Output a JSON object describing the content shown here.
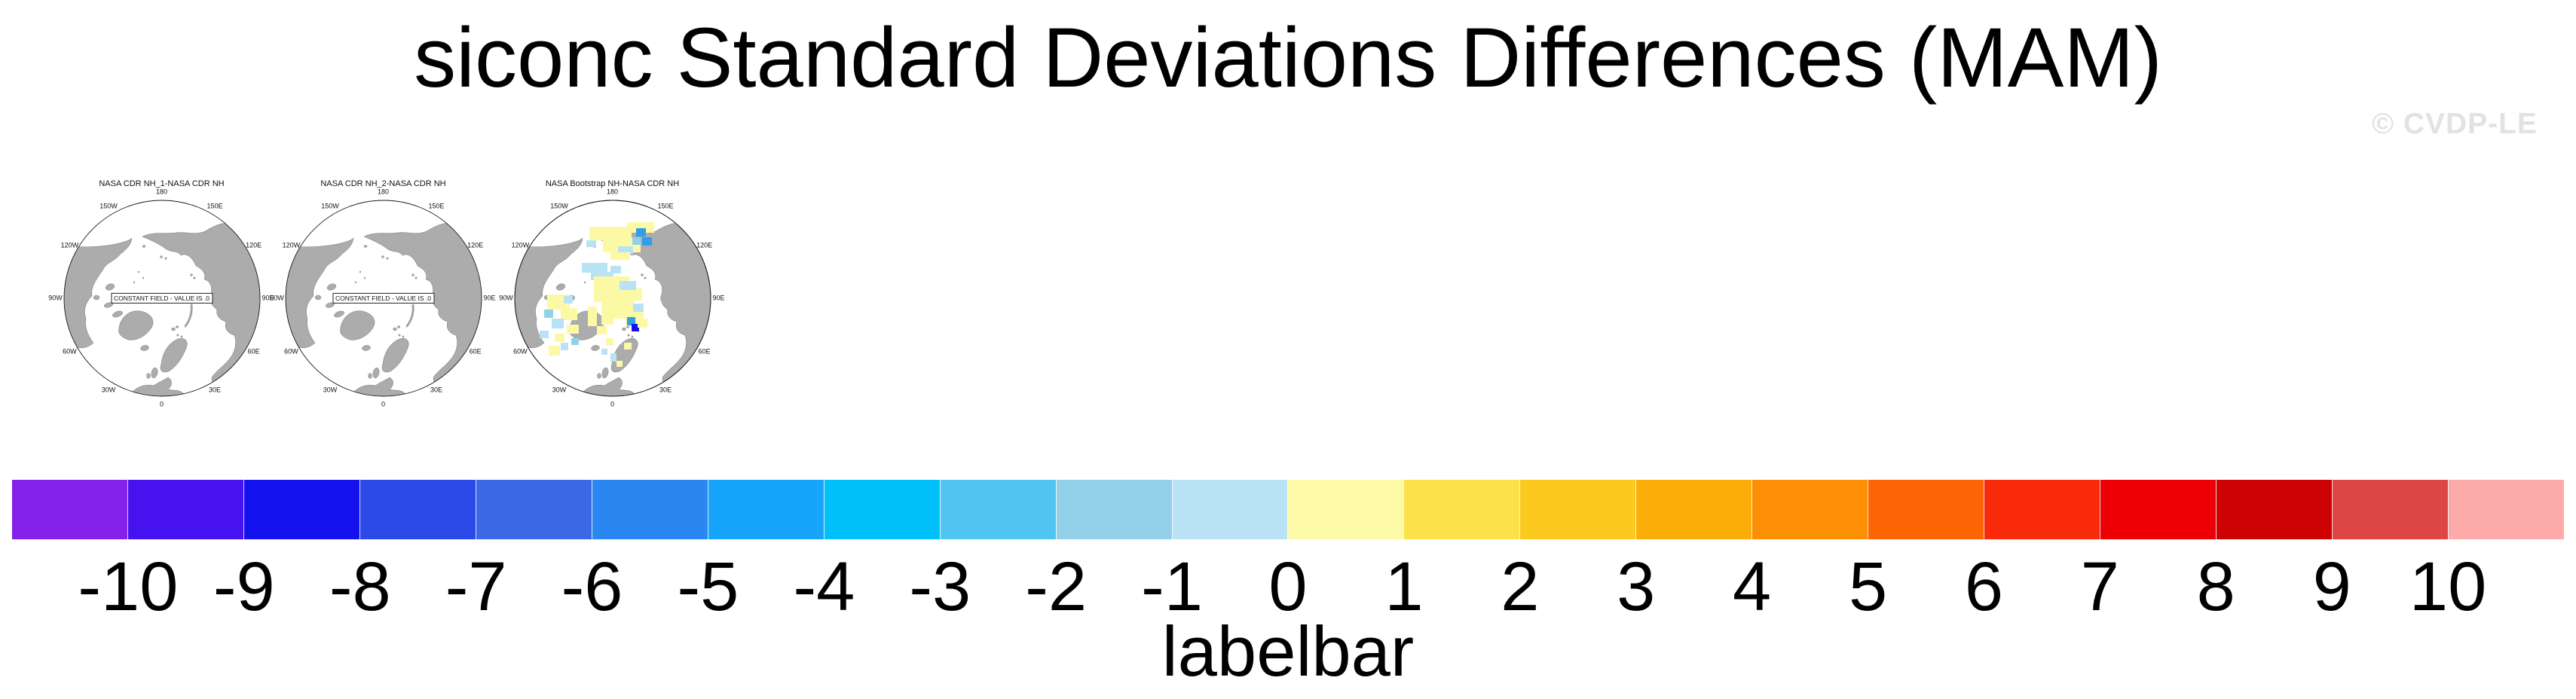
{
  "page": {
    "watermark": "© CVDP-LE"
  },
  "colors": {
    "land": "#ACACAC",
    "coastline": "#747474",
    "ocean": "#FFFFFF",
    "watermark_gray": "#E2E2E2",
    "map_outline": "#1a1a1a"
  },
  "chart_data": {
    "type": "heatmap",
    "title": "siconc Standard Deviations Differences (MAM)",
    "layout": "three north-polar stereographic panels, top-left; horizontal labelbar at bottom",
    "panels": [
      {
        "title": "NASA CDR NH_1-NASA CDR NH",
        "projection": "north-polar",
        "note": "CONSTANT FIELD - VALUE IS .0",
        "summary": "difference field is constant zero (no shading)"
      },
      {
        "title": "NASA CDR NH_2-NASA CDR NH",
        "projection": "north-polar",
        "note": "CONSTANT FIELD - VALUE IS .0",
        "summary": "difference field is constant zero (no shading)"
      },
      {
        "title": "NASA Bootstrap NH-NASA CDR NH",
        "projection": "north-polar",
        "note": "",
        "summary": "scattered differences over Arctic seas: mostly +0..1 (pale yellow), -1..-3 (light blues), isolated -4..-5 (blue) and one ≈ -8 (dark blue) cell",
        "patches": [
          [
            100,
            36,
            56,
            18,
            "py"
          ],
          [
            118,
            50,
            50,
            20,
            "py"
          ],
          [
            150,
            30,
            36,
            14,
            "py"
          ],
          [
            162,
            38,
            13,
            11,
            "sb"
          ],
          [
            170,
            50,
            13,
            11,
            "sb"
          ],
          [
            157,
            50,
            11,
            10,
            "mb"
          ],
          [
            138,
            62,
            20,
            10,
            "lb"
          ],
          [
            96,
            54,
            13,
            9,
            "lb"
          ],
          [
            128,
            70,
            26,
            10,
            "py"
          ],
          [
            90,
            84,
            34,
            13,
            "lb"
          ],
          [
            102,
            96,
            30,
            11,
            "lb"
          ],
          [
            128,
            88,
            14,
            10,
            "lb"
          ],
          [
            106,
            102,
            48,
            34,
            "py"
          ],
          [
            124,
            132,
            36,
            26,
            "py"
          ],
          [
            150,
            118,
            20,
            16,
            "py"
          ],
          [
            116,
            136,
            16,
            30,
            "py"
          ],
          [
            148,
            148,
            24,
            20,
            "py"
          ],
          [
            158,
            138,
            14,
            11,
            "lb"
          ],
          [
            140,
            108,
            22,
            12,
            "lb"
          ],
          [
            150,
            156,
            11,
            11,
            "sb"
          ],
          [
            156,
            165,
            10,
            10,
            "db"
          ],
          [
            164,
            158,
            13,
            12,
            "py"
          ],
          [
            44,
            126,
            30,
            20,
            "py"
          ],
          [
            62,
            144,
            22,
            16,
            "py"
          ],
          [
            50,
            158,
            16,
            13,
            "lb"
          ],
          [
            66,
            128,
            12,
            10,
            "lb"
          ],
          [
            40,
            146,
            12,
            11,
            "mb"
          ],
          [
            70,
            166,
            16,
            12,
            "py"
          ],
          [
            54,
            178,
            13,
            11,
            "py"
          ],
          [
            46,
            194,
            15,
            13,
            "py"
          ],
          [
            62,
            190,
            10,
            10,
            "lb"
          ],
          [
            34,
            174,
            12,
            10,
            "lb"
          ],
          [
            76,
            184,
            10,
            9,
            "mb"
          ],
          [
            98,
            142,
            12,
            26,
            "py"
          ],
          [
            110,
            168,
            13,
            11,
            "py"
          ],
          [
            122,
            184,
            10,
            10,
            "py"
          ],
          [
            116,
            198,
            8,
            8,
            "lb"
          ],
          [
            128,
            204,
            8,
            11,
            "lb"
          ],
          [
            136,
            214,
            8,
            8,
            "py"
          ],
          [
            146,
            190,
            10,
            9,
            "py"
          ]
        ]
      }
    ],
    "patch_palette": {
      "py": "#FCF9A4",
      "lb": "#B9E2F4",
      "mb": "#93D1EB",
      "sb": "#2E9FE8",
      "db": "#1512F0"
    },
    "map_frame": {
      "longitude_labels": [
        {
          "label": "180",
          "angle": 0
        },
        {
          "label": "150E",
          "angle": 30
        },
        {
          "label": "120E",
          "angle": 60
        },
        {
          "label": "90E",
          "angle": 90
        },
        {
          "label": "60E",
          "angle": 120
        },
        {
          "label": "30E",
          "angle": 150
        },
        {
          "label": "0",
          "angle": 180
        },
        {
          "label": "30W",
          "angle": 210
        },
        {
          "label": "60W",
          "angle": 240
        },
        {
          "label": "90W",
          "angle": 270
        },
        {
          "label": "120W",
          "angle": 300
        },
        {
          "label": "150W",
          "angle": 330
        }
      ]
    },
    "colorbar": {
      "caption": "labelbar",
      "orientation": "horizontal",
      "position": "bottom",
      "levels": [
        -10,
        -9,
        -8,
        -7,
        -6,
        -5,
        -4,
        -3,
        -2,
        -1,
        0,
        1,
        2,
        3,
        4,
        5,
        6,
        7,
        8,
        9,
        10
      ],
      "tick_labels": [
        "-10",
        "-9",
        "-8",
        "-7",
        "-6",
        "-5",
        "-4",
        "-3",
        "-2",
        "-1",
        "0",
        "1",
        "2",
        "3",
        "4",
        "5",
        "6",
        "7",
        "8",
        "9",
        "10"
      ],
      "colors": [
        "#8520EA",
        "#4612F0",
        "#1512F0",
        "#2B49E6",
        "#3B69E5",
        "#2A87F2",
        "#17A4FB",
        "#00C0FB",
        "#50C5F2",
        "#93D1EB",
        "#B9E2F4",
        "#FCFAA6",
        "#FCE14B",
        "#FCC91F",
        "#FCAE08",
        "#FC8F03",
        "#FC6404",
        "#F82A0A",
        "#EC0006",
        "#CD0303",
        "#DE4646",
        "#FCAAAA"
      ]
    }
  }
}
